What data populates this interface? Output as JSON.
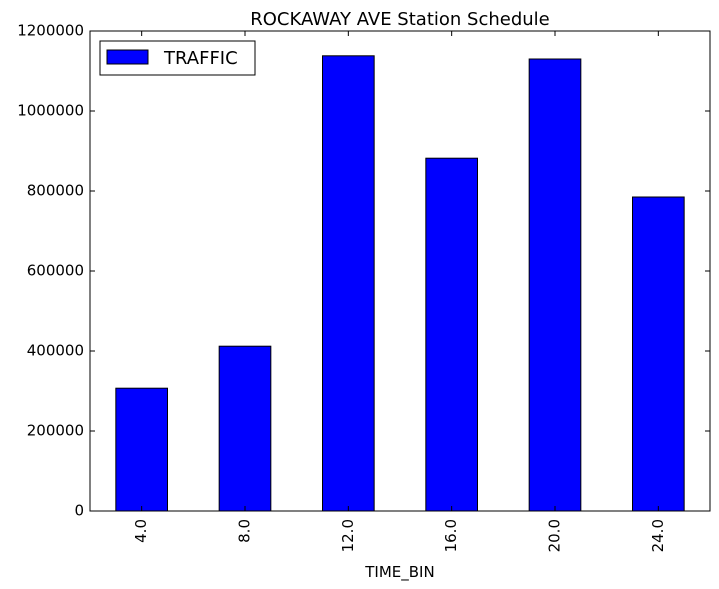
{
  "chart_data": {
    "type": "bar",
    "title": "ROCKAWAY AVE Station Schedule",
    "xlabel": "TIME_BIN",
    "ylabel": "",
    "categories": [
      "4.0",
      "8.0",
      "12.0",
      "16.0",
      "20.0",
      "24.0"
    ],
    "series": [
      {
        "name": "TRAFFIC",
        "values": [
          307000,
          412000,
          1138000,
          882000,
          1130000,
          785000
        ]
      }
    ],
    "ylim": [
      0,
      1200000
    ],
    "yticks": [
      0,
      200000,
      400000,
      600000,
      800000,
      1000000,
      1200000
    ],
    "grid": false,
    "legend_position": "top-left",
    "colors": {
      "bar": "#0000ff",
      "edge": "#000000"
    }
  }
}
